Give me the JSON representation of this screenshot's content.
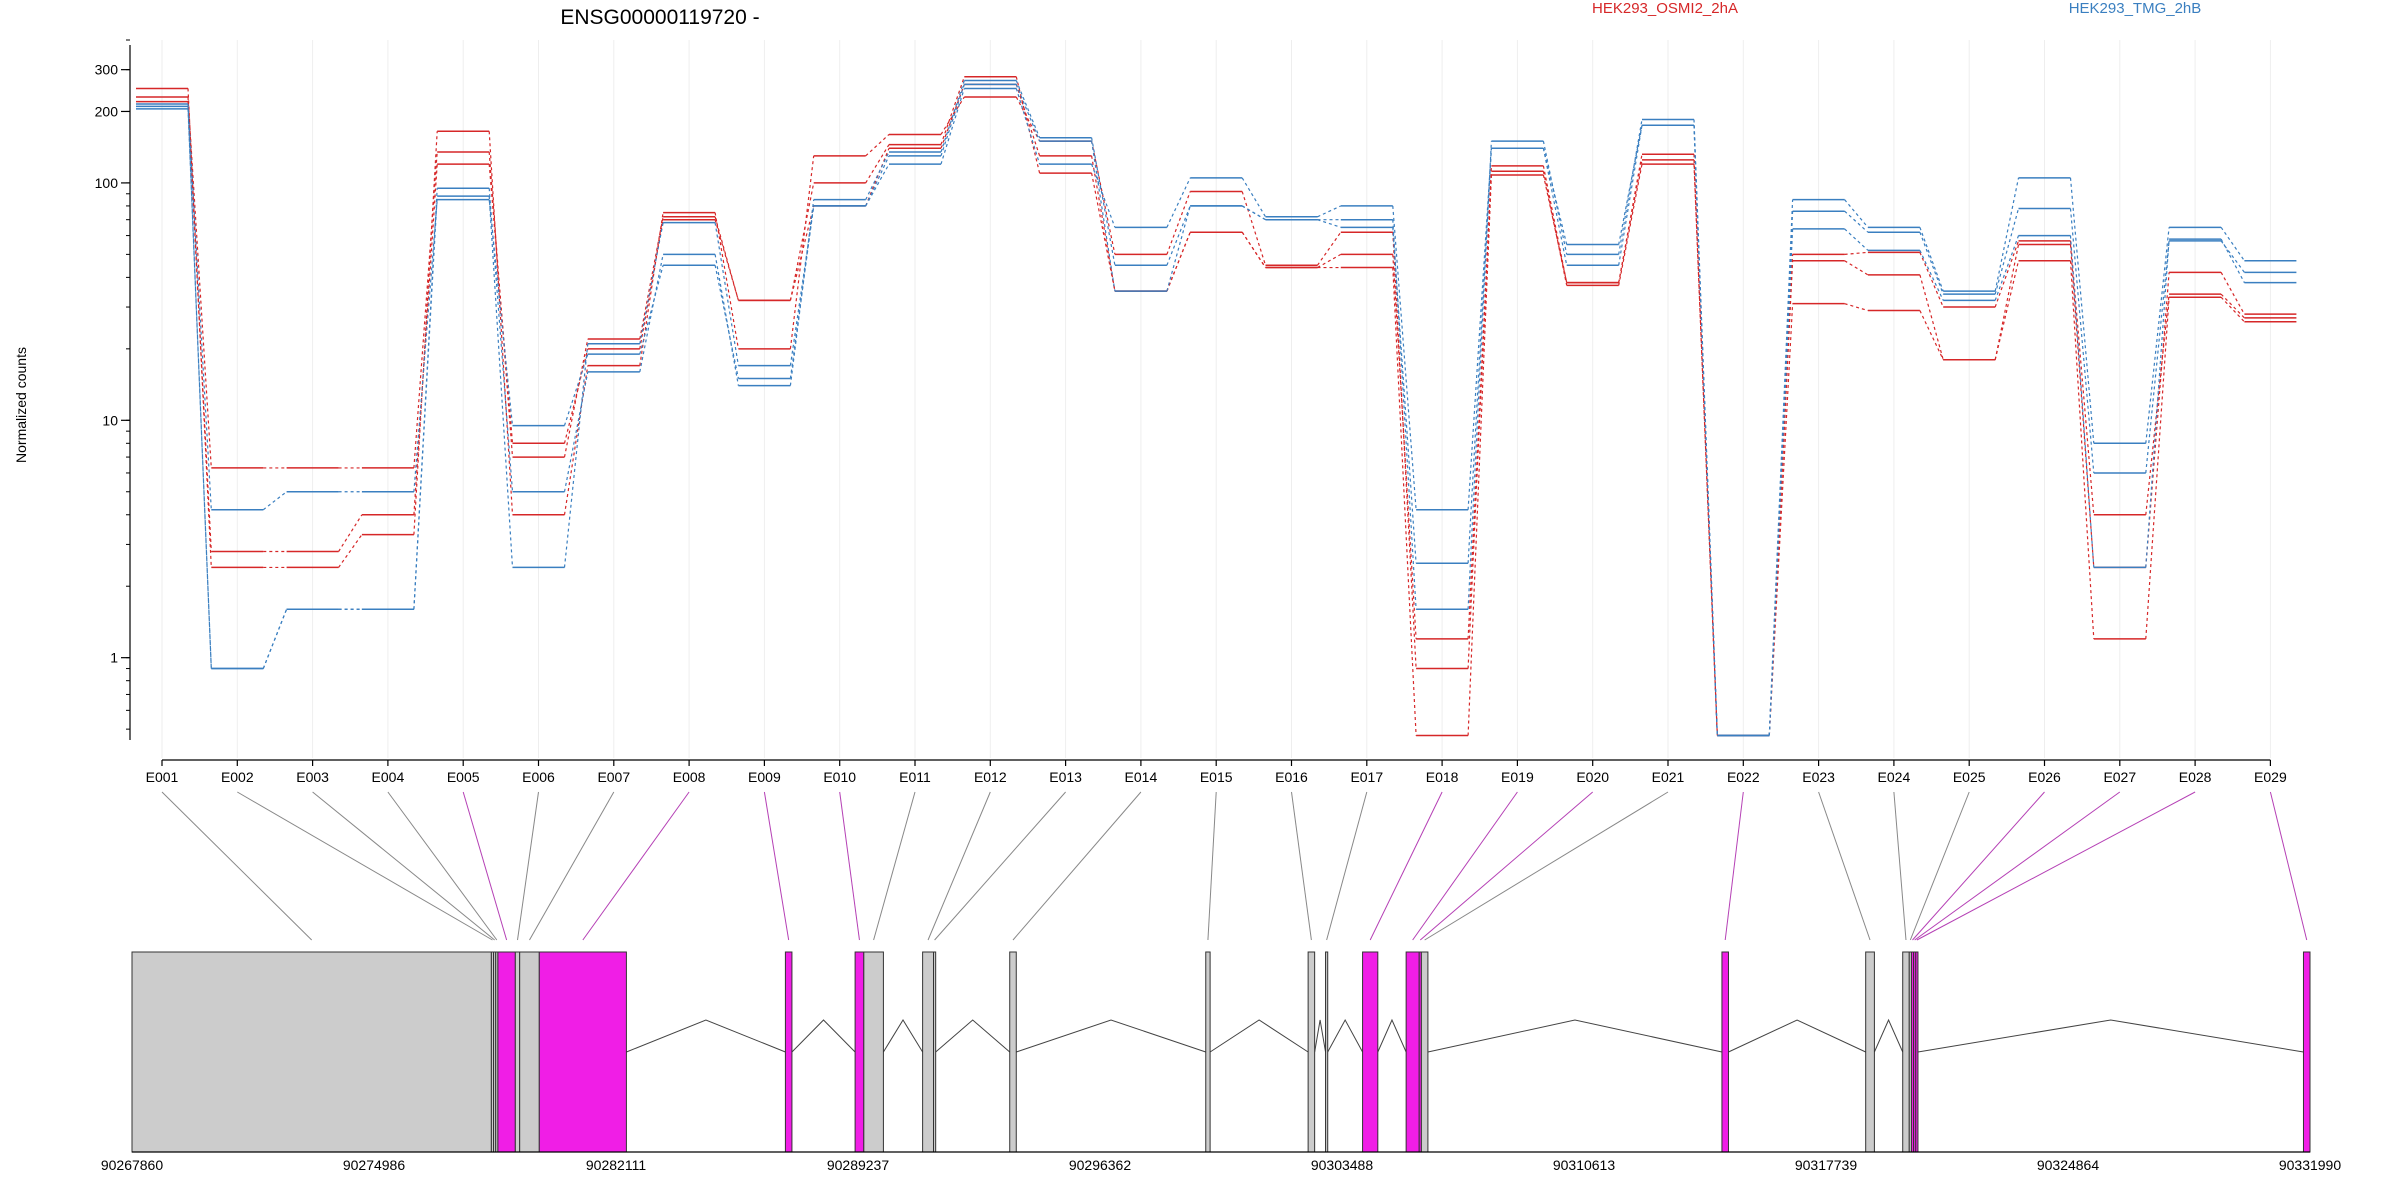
{
  "chart_data": {
    "type": "line",
    "title": "ENSG00000119720 -",
    "ylabel": "Normalized counts",
    "xlabel": "",
    "y_scale": "log",
    "ylim": [
      0.45,
      400
    ],
    "y_ticks": [
      1,
      10,
      100,
      200,
      300
    ],
    "grid": "vertical",
    "legend": [
      {
        "name": "HEK293_OSMI2_2hA",
        "color": "#d62728"
      },
      {
        "name": "HEK293_TMG_2hB",
        "color": "#3a7fc0"
      }
    ],
    "categories": [
      "E001",
      "E002",
      "E003",
      "E004",
      "E005",
      "E006",
      "E007",
      "E008",
      "E009",
      "E010",
      "E011",
      "E012",
      "E013",
      "E014",
      "E015",
      "E016",
      "E017",
      "E018",
      "E019",
      "E020",
      "E021",
      "E022",
      "E023",
      "E024",
      "E025",
      "E026",
      "E027",
      "E028",
      "E029"
    ],
    "series": [
      {
        "group": "HEK293_OSMI2_2hA",
        "values": [
          250,
          2.4,
          2.4,
          3.3,
          165,
          4,
          17,
          75,
          20,
          130,
          160,
          230,
          150,
          50,
          92,
          45,
          62,
          0.9,
          118,
          38,
          132,
          0.47,
          47,
          41,
          18,
          55,
          2.4,
          42,
          28
        ]
      },
      {
        "group": "HEK293_OSMI2_2hA",
        "values": [
          230,
          6.3,
          6.3,
          6.3,
          135,
          7,
          22,
          72,
          32,
          100,
          145,
          280,
          110,
          35,
          62,
          44,
          50,
          1.2,
          112,
          37,
          120,
          0.47,
          31,
          29,
          18,
          47,
          1.2,
          33,
          26
        ]
      },
      {
        "group": "HEK293_OSMI2_2hA",
        "values": [
          220,
          2.8,
          2.8,
          4,
          120,
          8,
          20,
          70,
          32,
          80,
          140,
          260,
          130,
          35,
          62,
          44,
          44,
          0.47,
          108,
          38,
          125,
          0.47,
          50,
          51,
          30,
          57,
          4,
          34,
          27
        ]
      },
      {
        "group": "HEK293_TMG_2hB",
        "values": [
          215,
          4.2,
          5,
          5,
          85,
          9.5,
          19,
          45,
          15,
          80,
          120,
          250,
          120,
          65,
          105,
          72,
          80,
          4.2,
          140,
          55,
          175,
          0.47,
          85,
          65,
          35,
          105,
          8,
          65,
          47
        ]
      },
      {
        "group": "HEK293_TMG_2hB",
        "values": [
          210,
          0.9,
          1.6,
          1.6,
          95,
          5,
          16,
          50,
          14,
          85,
          135,
          270,
          155,
          45,
          80,
          70,
          70,
          1.6,
          150,
          50,
          185,
          0.47,
          76,
          62,
          34,
          78,
          6,
          57,
          42
        ]
      },
      {
        "group": "HEK293_TMG_2hB",
        "values": [
          205,
          0.9,
          1.6,
          1.6,
          88,
          2.4,
          21,
          68,
          17,
          80,
          130,
          260,
          150,
          35,
          80,
          70,
          65,
          2.5,
          140,
          45,
          175,
          0.47,
          64,
          52,
          32,
          60,
          2.4,
          58,
          38
        ]
      }
    ],
    "gene_model": {
      "coord_ticks": [
        "90267860",
        "90274986",
        "90282111",
        "90289237",
        "90296362",
        "90303488",
        "90310613",
        "90317739",
        "90324864",
        "90331990"
      ],
      "exons": [
        {
          "exon": "E001",
          "gx_range": [
            0,
            0.165
          ],
          "highlight": false
        },
        {
          "exon": "E002",
          "gx_range": [
            0.165,
            0.166
          ],
          "highlight": false
        },
        {
          "exon": "E003",
          "gx_range": [
            0.166,
            0.167
          ],
          "highlight": false
        },
        {
          "exon": "E004",
          "gx_range": [
            0.167,
            0.168
          ],
          "highlight": false
        },
        {
          "exon": "E005",
          "gx_range": [
            0.168,
            0.176
          ],
          "highlight": true
        },
        {
          "exon": "E006",
          "gx_range": [
            0.176,
            0.178
          ],
          "highlight": false
        },
        {
          "exon": "E007",
          "gx_range": [
            0.178,
            0.187
          ],
          "highlight": false
        },
        {
          "exon": "E008",
          "gx_range": [
            0.187,
            0.227
          ],
          "highlight": true
        },
        {
          "exon": "E009",
          "gx_range": [
            0.3,
            0.303
          ],
          "highlight": true
        },
        {
          "exon": "E010",
          "gx_range": [
            0.332,
            0.336
          ],
          "highlight": true
        },
        {
          "exon": "E011",
          "gx_range": [
            0.336,
            0.345
          ],
          "highlight": false
        },
        {
          "exon": "E012",
          "gx_range": [
            0.363,
            0.368
          ],
          "highlight": false
        },
        {
          "exon": "E013",
          "gx_range": [
            0.368,
            0.369
          ],
          "highlight": false
        },
        {
          "exon": "E014",
          "gx_range": [
            0.403,
            0.406
          ],
          "highlight": false
        },
        {
          "exon": "E015",
          "gx_range": [
            0.493,
            0.495
          ],
          "highlight": false
        },
        {
          "exon": "E016",
          "gx_range": [
            0.54,
            0.543
          ],
          "highlight": false
        },
        {
          "exon": "E017",
          "gx_range": [
            0.548,
            0.549
          ],
          "highlight": false
        },
        {
          "exon": "E018",
          "gx_range": [
            0.565,
            0.572
          ],
          "highlight": true
        },
        {
          "exon": "E019",
          "gx_range": [
            0.585,
            0.591
          ],
          "highlight": true
        },
        {
          "exon": "E020",
          "gx_range": [
            0.591,
            0.592
          ],
          "highlight": true
        },
        {
          "exon": "E021",
          "gx_range": [
            0.592,
            0.595
          ],
          "highlight": false
        },
        {
          "exon": "E022",
          "gx_range": [
            0.73,
            0.733
          ],
          "highlight": true
        },
        {
          "exon": "E023",
          "gx_range": [
            0.796,
            0.8
          ],
          "highlight": false
        },
        {
          "exon": "E024",
          "gx_range": [
            0.813,
            0.816
          ],
          "highlight": false
        },
        {
          "exon": "E025",
          "gx_range": [
            0.816,
            0.817
          ],
          "highlight": false
        },
        {
          "exon": "E026",
          "gx_range": [
            0.817,
            0.818
          ],
          "highlight": true
        },
        {
          "exon": "E027",
          "gx_range": [
            0.818,
            0.819
          ],
          "highlight": true
        },
        {
          "exon": "E028",
          "gx_range": [
            0.819,
            0.82
          ],
          "highlight": true
        },
        {
          "exon": "E029",
          "gx_range": [
            0.997,
            1.0
          ],
          "highlight": true
        }
      ]
    }
  },
  "colors": {
    "group_a": "#d62728",
    "group_b": "#3a7fc0",
    "exon_highlight": "#f01ee6",
    "exon_default": "#cccccc",
    "connector_default": "#888888",
    "connector_highlight": "#b540b5",
    "gridline": "#eeeeee"
  }
}
